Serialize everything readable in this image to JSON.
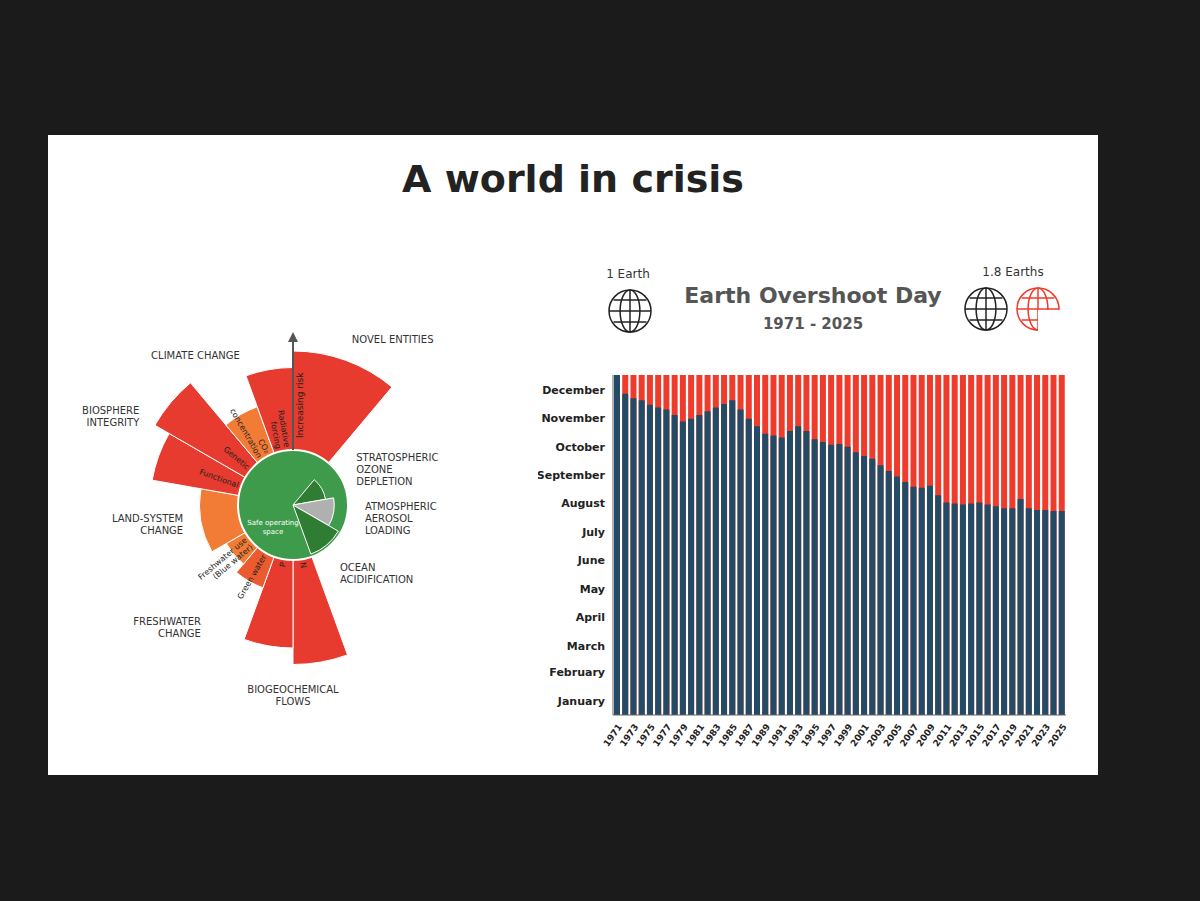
{
  "slide_title": "A world in crisis",
  "chart_data": [
    {
      "type": "radial",
      "rlim": [
        0,
        3
      ],
      "boundary": 1,
      "zones": {
        "inner": "Safe operating space",
        "outer": "Increasing risk"
      },
      "groups": [
        {
          "label": "NOVEL ENTITIES",
          "categories": [
            null
          ],
          "values": [
            2.8
          ],
          "colors": [
            "#e63b2e"
          ]
        },
        {
          "label": "STRATOSPHERIC OZONE DEPLETION",
          "categories": [
            null
          ],
          "values": [
            0.6
          ],
          "colors": [
            "#2e7d32"
          ]
        },
        {
          "label": "ATMOSPHERIC AEROSOL LOADING",
          "categories": [
            null
          ],
          "values": [
            0.75
          ],
          "colors": [
            "#b0b0b0"
          ]
        },
        {
          "label": "OCEAN ACIDIFICATION",
          "categories": [
            null
          ],
          "values": [
            0.95
          ],
          "colors": [
            "#2e7d32"
          ]
        },
        {
          "label": "BIOGEOCHEMICAL FLOWS",
          "categories": [
            "N",
            "P"
          ],
          "values": [
            2.9,
            2.6
          ],
          "colors": [
            "#e63b2e",
            "#e63b2e"
          ]
        },
        {
          "label": "FRESHWATER CHANGE",
          "categories": [
            "Green water",
            "Freshwater use (Blue water)"
          ],
          "values": [
            1.6,
            1.4
          ],
          "colors": [
            "#ec5a2f",
            "#f27b35"
          ]
        },
        {
          "label": "LAND-SYSTEM CHANGE",
          "categories": [
            null
          ],
          "values": [
            1.7
          ],
          "colors": [
            "#f27b35"
          ]
        },
        {
          "label": "BIOSPHERE INTEGRITY",
          "categories": [
            "Functional",
            "Genetic"
          ],
          "values": [
            2.6,
            2.9
          ],
          "colors": [
            "#e63b2e",
            "#e63b2e"
          ]
        },
        {
          "label": "CLIMATE CHANGE",
          "categories": [
            "CO₂ concentration",
            "Radiative forcing"
          ],
          "values": [
            1.9,
            2.5
          ],
          "colors": [
            "#f27b35",
            "#e63b2e"
          ]
        }
      ]
    },
    {
      "type": "bar",
      "title": "Earth Overshoot Day",
      "subtitle": "1971 - 2025",
      "annotations": [
        "1 Earth",
        "1.8 Earths"
      ],
      "categories": [
        "1971",
        null,
        "1973",
        null,
        "1975",
        null,
        "1977",
        null,
        "1979",
        null,
        "1981",
        null,
        "1983",
        null,
        "1985",
        null,
        "1987",
        null,
        "1989",
        null,
        "1991",
        null,
        "1993",
        null,
        "1995",
        null,
        "1997",
        null,
        "1999",
        null,
        "2001",
        null,
        "2003",
        null,
        "2005",
        null,
        "2007",
        null,
        "2009",
        null,
        "2011",
        null,
        "2013",
        null,
        "2015",
        null,
        "2017",
        null,
        "2019",
        null,
        "2021",
        null,
        "2023",
        null,
        "2025"
      ],
      "values": [
        365,
        345,
        340,
        338,
        333,
        330,
        328,
        322,
        315,
        318,
        322,
        326,
        330,
        334,
        338,
        328,
        318,
        310,
        302,
        300,
        298,
        305,
        310,
        305,
        296,
        293,
        290,
        291,
        288,
        282,
        278,
        275,
        268,
        262,
        256,
        250,
        245,
        244,
        246,
        236,
        228,
        227,
        226,
        227,
        228,
        226,
        224,
        222,
        222,
        232,
        222,
        220,
        220,
        219,
        219
      ],
      "color": "#234b66",
      "ylim": [
        0,
        365
      ],
      "yticks": [
        {
          "value": 15,
          "label": "January"
        },
        {
          "value": 46,
          "label": "February"
        },
        {
          "value": 74,
          "label": "March"
        },
        {
          "value": 105,
          "label": "April"
        },
        {
          "value": 135,
          "label": "May"
        },
        {
          "value": 166,
          "label": "June"
        },
        {
          "value": 196,
          "label": "July"
        },
        {
          "value": 227,
          "label": "August"
        },
        {
          "value": 258,
          "label": "September"
        },
        {
          "value": 288,
          "label": "October"
        },
        {
          "value": 319,
          "label": "November"
        },
        {
          "value": 349,
          "label": "December"
        }
      ],
      "grid": false
    }
  ]
}
